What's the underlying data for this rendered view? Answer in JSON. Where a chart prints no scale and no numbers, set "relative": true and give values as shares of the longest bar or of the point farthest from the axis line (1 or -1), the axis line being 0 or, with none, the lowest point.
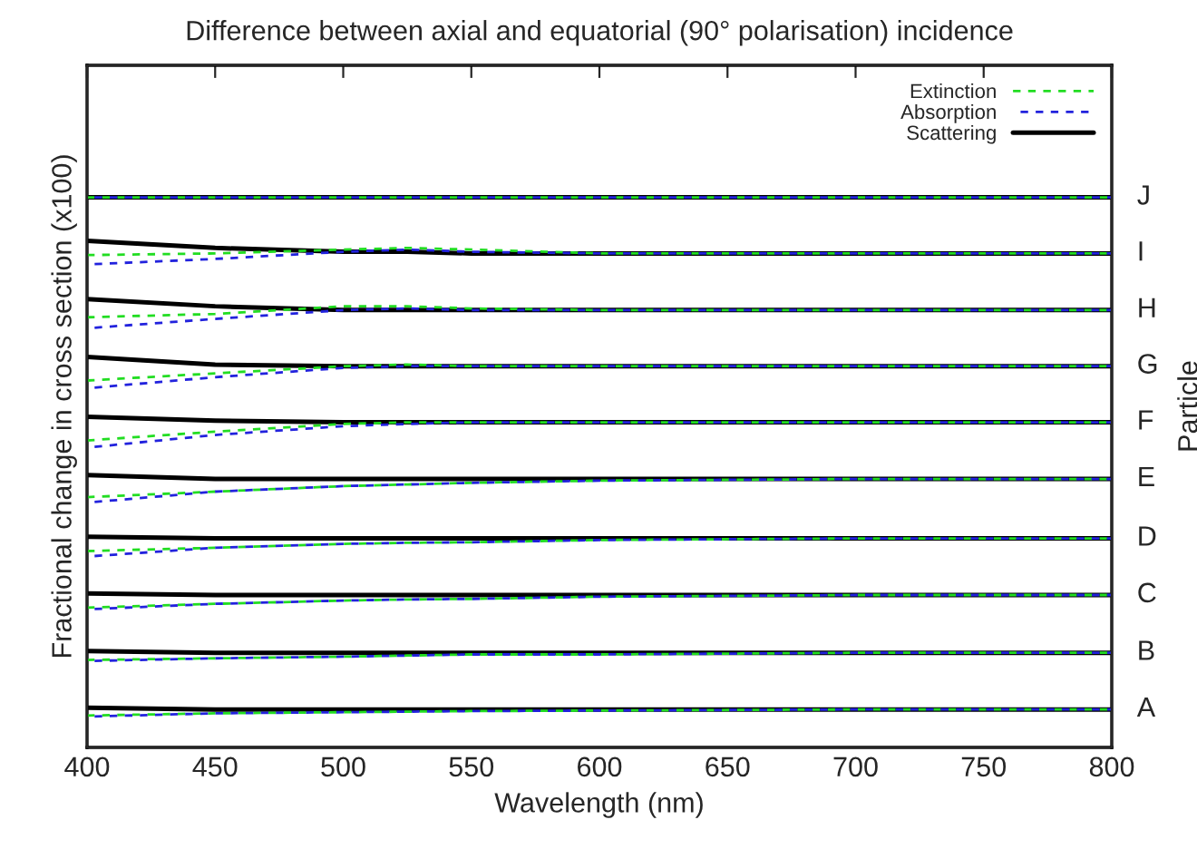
{
  "chart_data": {
    "type": "line",
    "title": "Difference between axial and equatorial (90° polarisation) incidence",
    "xlabel": "Wavelength (nm)",
    "ylabel": "Fractional change in cross section (x100)",
    "y2label": "Particle",
    "relative": true,
    "legend": "top right",
    "grid": false,
    "marker": "none",
    "x": [
      400,
      450,
      500,
      525,
      550,
      600,
      700,
      800
    ],
    "xlim": [
      400,
      800
    ],
    "xticks": [
      400,
      450,
      500,
      550,
      600,
      650,
      700,
      750,
      800
    ],
    "series": [
      {
        "name": "Extinction",
        "color": "#22dd22",
        "line_style": "dashed",
        "values": [
          1.0,
          1.0,
          1.0,
          1.0,
          1.0,
          1.0,
          1.0,
          1.0
        ]
      },
      {
        "name": "Absorption",
        "color": "#2222dd",
        "line_style": "dashed",
        "values": [
          1.0,
          1.0,
          1.0,
          1.0,
          1.0,
          1.0,
          1.0,
          1.0
        ]
      },
      {
        "name": "Scattering",
        "color": "#000000",
        "line_style": "solid",
        "values": [
          1.0,
          1.0,
          1.0,
          1.0,
          1.0,
          1.0,
          1.0,
          1.0
        ]
      },
      {
        "color": "#22dd22",
        "line_style": "dashed",
        "values": [
          0.895,
          0.898,
          0.905,
          0.908,
          0.905,
          0.898,
          0.898,
          0.898
        ]
      },
      {
        "color": "#2222dd",
        "line_style": "dashed",
        "values": [
          0.878,
          0.888,
          0.901,
          0.905,
          0.901,
          0.898,
          0.898,
          0.898
        ]
      },
      {
        "color": "#000000",
        "line_style": "solid",
        "values": [
          0.921,
          0.908,
          0.901,
          0.901,
          0.898,
          0.898,
          0.898,
          0.898
        ]
      },
      {
        "color": "#22dd22",
        "line_style": "dashed",
        "values": [
          0.782,
          0.788,
          0.802,
          0.802,
          0.798,
          0.795,
          0.795,
          0.795
        ]
      },
      {
        "color": "#2222dd",
        "line_style": "dashed",
        "values": [
          0.762,
          0.779,
          0.795,
          0.798,
          0.795,
          0.795,
          0.795,
          0.795
        ]
      },
      {
        "color": "#000000",
        "line_style": "solid",
        "values": [
          0.815,
          0.802,
          0.795,
          0.795,
          0.795,
          0.795,
          0.795,
          0.795
        ]
      },
      {
        "color": "#22dd22",
        "line_style": "dashed",
        "values": [
          0.667,
          0.68,
          0.693,
          0.696,
          0.693,
          0.693,
          0.693,
          0.693
        ]
      },
      {
        "color": "#2222dd",
        "line_style": "dashed",
        "values": [
          0.653,
          0.673,
          0.69,
          0.693,
          0.693,
          0.693,
          0.693,
          0.693
        ]
      },
      {
        "color": "#000000",
        "line_style": "solid",
        "values": [
          0.71,
          0.696,
          0.693,
          0.693,
          0.693,
          0.693,
          0.693,
          0.693
        ]
      },
      {
        "color": "#22dd22",
        "line_style": "dashed",
        "values": [
          0.558,
          0.574,
          0.588,
          0.591,
          0.591,
          0.591,
          0.591,
          0.591
        ]
      },
      {
        "color": "#2222dd",
        "line_style": "dashed",
        "values": [
          0.545,
          0.568,
          0.584,
          0.588,
          0.591,
          0.591,
          0.591,
          0.591
        ]
      },
      {
        "color": "#000000",
        "line_style": "solid",
        "values": [
          0.601,
          0.594,
          0.591,
          0.591,
          0.591,
          0.591,
          0.591,
          0.591
        ]
      },
      {
        "color": "#22dd22",
        "line_style": "dashed",
        "values": [
          0.455,
          0.465,
          0.475,
          0.478,
          0.481,
          0.485,
          0.488,
          0.488
        ]
      },
      {
        "color": "#2222dd",
        "line_style": "dashed",
        "values": [
          0.445,
          0.465,
          0.475,
          0.478,
          0.481,
          0.485,
          0.488,
          0.488
        ]
      },
      {
        "color": "#000000",
        "line_style": "solid",
        "values": [
          0.495,
          0.488,
          0.488,
          0.488,
          0.488,
          0.488,
          0.488,
          0.488
        ]
      },
      {
        "color": "#22dd22",
        "line_style": "dashed",
        "values": [
          0.357,
          0.363,
          0.37,
          0.372,
          0.373,
          0.377,
          0.38,
          0.38
        ]
      },
      {
        "color": "#2222dd",
        "line_style": "dashed",
        "values": [
          0.347,
          0.363,
          0.37,
          0.372,
          0.373,
          0.377,
          0.38,
          0.38
        ]
      },
      {
        "color": "#000000",
        "line_style": "solid",
        "values": [
          0.383,
          0.38,
          0.38,
          0.38,
          0.38,
          0.38,
          0.38,
          0.38
        ]
      },
      {
        "color": "#22dd22",
        "line_style": "dashed",
        "values": [
          0.254,
          0.261,
          0.267,
          0.269,
          0.27,
          0.274,
          0.277,
          0.277
        ]
      },
      {
        "color": "#2222dd",
        "line_style": "dashed",
        "values": [
          0.251,
          0.261,
          0.267,
          0.269,
          0.27,
          0.274,
          0.277,
          0.277
        ]
      },
      {
        "color": "#000000",
        "line_style": "solid",
        "values": [
          0.28,
          0.277,
          0.277,
          0.277,
          0.277,
          0.277,
          0.277,
          0.277
        ]
      },
      {
        "color": "#22dd22",
        "line_style": "dashed",
        "values": [
          0.159,
          0.162,
          0.165,
          0.167,
          0.169,
          0.169,
          0.172,
          0.172
        ]
      },
      {
        "color": "#2222dd",
        "line_style": "dashed",
        "values": [
          0.157,
          0.162,
          0.165,
          0.167,
          0.169,
          0.169,
          0.172,
          0.172
        ]
      },
      {
        "color": "#000000",
        "line_style": "solid",
        "values": [
          0.175,
          0.172,
          0.172,
          0.172,
          0.172,
          0.172,
          0.172,
          0.172
        ]
      },
      {
        "color": "#22dd22",
        "line_style": "dashed",
        "values": [
          0.058,
          0.062,
          0.064,
          0.065,
          0.066,
          0.067,
          0.069,
          0.069
        ]
      },
      {
        "color": "#2222dd",
        "line_style": "dashed",
        "values": [
          0.056,
          0.062,
          0.064,
          0.065,
          0.066,
          0.067,
          0.069,
          0.069
        ]
      },
      {
        "color": "#000000",
        "line_style": "solid",
        "values": [
          0.072,
          0.069,
          0.069,
          0.069,
          0.069,
          0.069,
          0.069,
          0.069
        ]
      }
    ],
    "annotations": [
      "J",
      "I",
      "H",
      "G",
      "F",
      "E",
      "D",
      "C",
      "B",
      "A"
    ]
  }
}
